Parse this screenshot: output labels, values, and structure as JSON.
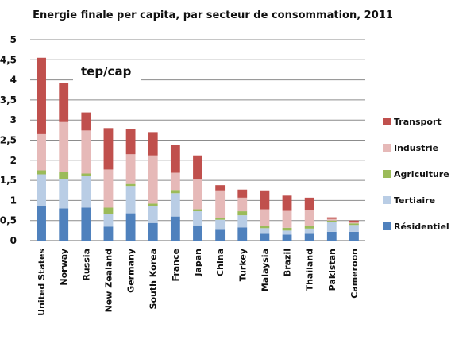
{
  "chart_data": {
    "type": "bar",
    "stacked": true,
    "orientation": "vertical",
    "title": "Energie finale per capita, par secteur de consommation, 2011",
    "annotation": "tep/cap",
    "xlabel": "",
    "ylabel": "",
    "ylim": [
      0,
      5
    ],
    "yticks": [
      0,
      0.5,
      1,
      1.5,
      2,
      2.5,
      3,
      3.5,
      4,
      4.5,
      5
    ],
    "ytick_labels": [
      "0",
      "0,5",
      "1",
      "1,5",
      "2",
      "2,5",
      "3",
      "3,5",
      "4",
      "4,5",
      "5"
    ],
    "grid": true,
    "legend_position": "right",
    "categories": [
      "United States",
      "Norway",
      "Russia",
      "New Zealand",
      "Germany",
      "South Korea",
      "France",
      "Japan",
      "China",
      "Turkey",
      "Malaysia",
      "Brazil",
      "Thailand",
      "Pakistan",
      "Cameroon"
    ],
    "series": [
      {
        "name": "Résidentiel",
        "color": "#4f81bd",
        "values": [
          0.85,
          0.8,
          0.82,
          0.35,
          0.68,
          0.44,
          0.6,
          0.38,
          0.27,
          0.33,
          0.17,
          0.15,
          0.17,
          0.22,
          0.22
        ]
      },
      {
        "name": "Tertiaire",
        "color": "#b9cde5",
        "values": [
          0.8,
          0.73,
          0.78,
          0.32,
          0.68,
          0.42,
          0.58,
          0.35,
          0.25,
          0.3,
          0.14,
          0.1,
          0.13,
          0.25,
          0.17
        ]
      },
      {
        "name": "Agriculture",
        "color": "#9bbb59",
        "values": [
          0.1,
          0.17,
          0.07,
          0.15,
          0.05,
          0.06,
          0.08,
          0.05,
          0.05,
          0.1,
          0.05,
          0.07,
          0.06,
          0.03,
          0.04
        ]
      },
      {
        "name": "Industrie",
        "color": "#e6b9b8",
        "values": [
          0.9,
          1.25,
          1.07,
          0.95,
          0.74,
          1.2,
          0.43,
          0.74,
          0.68,
          0.34,
          0.42,
          0.42,
          0.41,
          0.04,
          0.02
        ]
      },
      {
        "name": "Transport",
        "color": "#c0504d",
        "values": [
          1.9,
          0.97,
          0.45,
          1.03,
          0.63,
          0.58,
          0.7,
          0.6,
          0.13,
          0.2,
          0.47,
          0.38,
          0.3,
          0.04,
          0.05
        ]
      }
    ]
  }
}
